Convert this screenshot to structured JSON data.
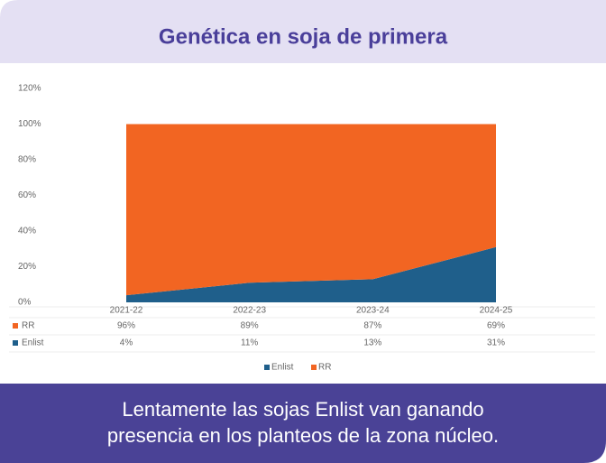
{
  "header": {
    "title": "Genética en soja de primera"
  },
  "chart_data": {
    "type": "stacked_area",
    "categories": [
      "2021-22",
      "2022-23",
      "2023-24",
      "2024-25"
    ],
    "series": [
      {
        "name": "RR",
        "color": "#f26522",
        "values": [
          96,
          89,
          87,
          69
        ],
        "value_labels": [
          "96%",
          "89%",
          "87%",
          "69%"
        ]
      },
      {
        "name": "Enlist",
        "color": "#1f5f8b",
        "values": [
          4,
          11,
          13,
          31
        ],
        "value_labels": [
          "4%",
          "11%",
          "13%",
          "31%"
        ]
      }
    ],
    "ylim": [
      0,
      120
    ],
    "yticks": [
      {
        "value": 0,
        "label": "0%"
      },
      {
        "value": 20,
        "label": "20%"
      },
      {
        "value": 40,
        "label": "40%"
      },
      {
        "value": 60,
        "label": "60%"
      },
      {
        "value": 80,
        "label": "80%"
      },
      {
        "value": 100,
        "label": "100%"
      },
      {
        "value": 120,
        "label": "120%"
      }
    ]
  },
  "footer": {
    "caption": [
      "Lentamente las sojas Enlist van ganando",
      "presencia en los planteos de la zona núcleo."
    ]
  }
}
